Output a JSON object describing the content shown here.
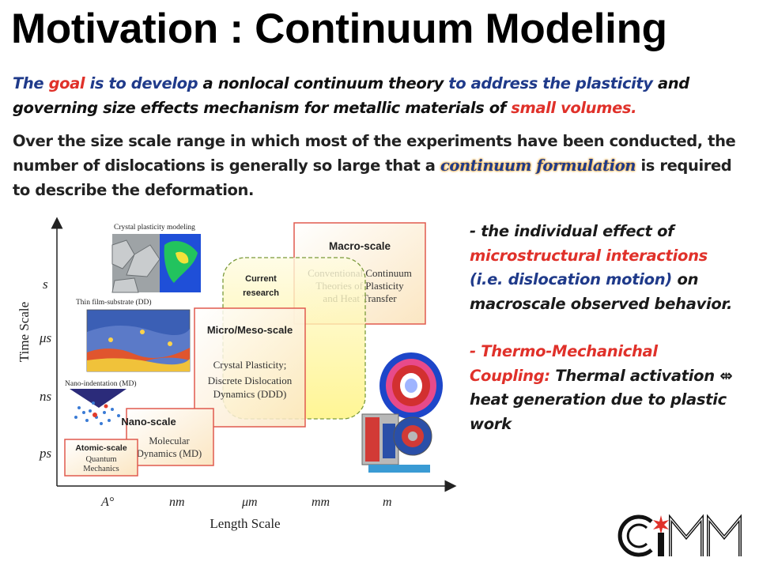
{
  "title": "Motivation : Continuum Modeling",
  "goal": {
    "w1": "The",
    "w2": "goal",
    "w3": "is to develop",
    "w4": "a nonlocal continuum theory",
    "w5": "to address the plasticity",
    "w6": "and governing size effects mechanism for metallic materials of",
    "w7": "small volumes."
  },
  "scale_text": {
    "pre": "Over the size scale range in which most of the experiments have been conducted, the number of dislocations is generally so large that a",
    "highlight": "continuum formulation",
    "post": "is required to describe the deformation."
  },
  "diagram": {
    "y_axis_label": "Time Scale",
    "x_axis_label": "Length Scale",
    "y_ticks": [
      "s",
      "μs",
      "ns",
      "ps"
    ],
    "x_ticks": [
      "A°",
      "nm",
      "μm",
      "mm",
      "m"
    ],
    "boxes": {
      "atomic_title": "Atomic-scale",
      "atomic_desc1": "Quantum",
      "atomic_desc2": "Mechanics",
      "nano_title": "Nano-scale",
      "nano_desc1": "Molecular",
      "nano_desc2": "Dynamics (MD)",
      "micro_title": "Micro/Meso-scale",
      "micro_desc1": "Crystal Plasticity;",
      "micro_desc2": "Discrete Dislocation",
      "micro_desc3": "Dynamics (DDD)",
      "macro_title": "Macro-scale",
      "macro_desc1": "Conventional Continuum",
      "macro_desc2": "Theories of Plasticity",
      "macro_desc3": "and Heat Transfer",
      "current1": "Current",
      "current2": "research"
    },
    "image_captions": {
      "crystal": "Crystal plasticity modeling",
      "thinfilm": "Thin film-substrate (DD)",
      "nanoind": "Nano-indentation (MD)"
    }
  },
  "bullets": {
    "b1_a": "- the individual effect of",
    "b1_b": "microstructural interactions",
    "b1_c": "(i.e. dislocation motion)",
    "b1_d": "on macroscale observed behavior.",
    "b2_a": "- Thermo-Mechanichal Coupling:",
    "b2_b": "Thermal activation",
    "b2_arrow": "⇎",
    "b2_c": "heat generation due to plastic work"
  },
  "logo_text": "CIMM"
}
